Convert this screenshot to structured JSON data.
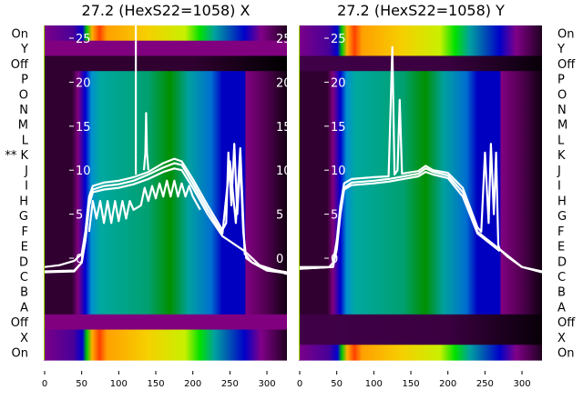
{
  "chart_data": [
    {
      "type": "heatmap",
      "title": "27.2 (HexS22=1058) X",
      "row_labels": [
        "On",
        "Y",
        "Off",
        "P",
        "O",
        "N",
        "M",
        "L",
        "** K",
        "J",
        "I",
        "H",
        "G",
        "F",
        "E",
        "D",
        "C",
        "B",
        "A",
        "Off",
        "X",
        "On"
      ],
      "row_kinds": [
        "on",
        "cal",
        "cal",
        "signal",
        "signal",
        "signal",
        "signal",
        "signal",
        "signal",
        "signal",
        "signal",
        "signal",
        "signal",
        "signal",
        "signal",
        "signal",
        "signal",
        "signal",
        "signal",
        "cal",
        "on",
        "on"
      ],
      "row_kinds_note_top": "top",
      "x_ticks": [
        "0",
        "50",
        "100",
        "150",
        "200",
        "250",
        "300"
      ],
      "x_tick_values": [
        0,
        50,
        100,
        150,
        200,
        250,
        300
      ],
      "xlim": [
        0,
        327
      ],
      "y_ticks": [
        "25",
        "20",
        "15",
        "10",
        "5",
        "0"
      ],
      "y_tick_values": [
        25,
        20,
        15,
        10,
        5,
        0
      ],
      "y_ticks_right": [
        "25",
        "20",
        "15",
        "10",
        "5",
        "0"
      ],
      "ylim": [
        -11.5,
        26.5
      ],
      "traces": [
        {
          "name": "trace-1",
          "x": [
            0,
            20,
            40,
            50,
            55,
            60,
            65,
            80,
            100,
            120,
            140,
            160,
            175,
            185,
            200,
            220,
            240,
            245,
            248,
            252,
            256,
            260,
            264,
            268,
            272,
            280,
            300,
            327
          ],
          "y": [
            -1,
            -0.8,
            -0.3,
            0.5,
            3,
            7,
            8.2,
            8.6,
            8.8,
            9.2,
            9.8,
            10.8,
            11.3,
            11,
            9,
            6,
            3.2,
            4,
            12,
            6,
            13,
            5,
            11,
            3,
            0,
            -0.5,
            -1.2,
            -1.6
          ]
        },
        {
          "name": "trace-2",
          "x": [
            0,
            40,
            50,
            55,
            60,
            65,
            80,
            100,
            120,
            140,
            160,
            175,
            185,
            200,
            220,
            240,
            250,
            258,
            264,
            270,
            280,
            300,
            327
          ],
          "y": [
            -1.5,
            -1.4,
            -0.5,
            2,
            6,
            7.8,
            8.2,
            8.4,
            8.8,
            9.5,
            10.3,
            10.8,
            10.6,
            8.5,
            5.5,
            2.8,
            11,
            4,
            12.5,
            0.5,
            -0.5,
            -1.4,
            -1.7
          ]
        },
        {
          "name": "trace-3",
          "x": [
            0,
            40,
            50,
            55,
            60,
            65,
            80,
            100,
            120,
            140,
            160,
            175,
            185,
            200,
            220,
            240,
            270,
            290,
            327
          ],
          "y": [
            -1.6,
            -1.5,
            -0.5,
            2,
            6,
            7.5,
            7.8,
            8,
            8.4,
            9,
            9.8,
            10.2,
            10,
            8,
            5,
            2.5,
            0.8,
            -0.8,
            -1.8
          ]
        },
        {
          "name": "trace-osc",
          "x": [
            60,
            65,
            70,
            75,
            80,
            85,
            90,
            95,
            100,
            105,
            110,
            115,
            120,
            130,
            135,
            140,
            145,
            150,
            155,
            160,
            165,
            170,
            175,
            180,
            185,
            190,
            195,
            200,
            210
          ],
          "y": [
            3,
            6.5,
            4.5,
            6.5,
            4,
            6.5,
            4,
            6.5,
            4.2,
            6.5,
            4.5,
            6.5,
            5.5,
            6,
            8,
            6.5,
            8.2,
            6.8,
            8.5,
            7,
            8.8,
            7,
            8.8,
            7,
            8.5,
            7,
            8.2,
            7,
            5.5
          ]
        },
        {
          "name": "trace-spike-137",
          "x": [
            134,
            136,
            137,
            138,
            140
          ],
          "y": [
            10,
            12,
            16.5,
            12,
            10
          ]
        },
        {
          "name": "trace-vertical-123",
          "x": [
            123,
            123
          ],
          "y": [
            9.5,
            26.5
          ]
        }
      ]
    },
    {
      "type": "heatmap",
      "title": "27.2 (HexS22=1058) Y",
      "row_labels": [
        "On",
        "Y",
        "Off",
        "P",
        "O",
        "N",
        "M",
        "L",
        "K",
        "J",
        "I",
        "H",
        "G",
        "F",
        "E",
        "D",
        "C",
        "B",
        "A",
        "Off",
        "X",
        "On"
      ],
      "row_kinds": [
        "on",
        "on",
        "off",
        "signal",
        "signal",
        "signal",
        "signal",
        "signal",
        "signal",
        "signal",
        "signal",
        "signal",
        "signal",
        "signal",
        "signal",
        "signal",
        "signal",
        "signal",
        "signal",
        "off",
        "off",
        "on"
      ],
      "x_ticks": [
        "0",
        "50",
        "100",
        "150",
        "200",
        "250",
        "300"
      ],
      "x_tick_values": [
        0,
        50,
        100,
        150,
        200,
        250,
        300
      ],
      "xlim": [
        0,
        327
      ],
      "y_ticks": [
        "25",
        "20",
        "15",
        "10",
        "5",
        "0"
      ],
      "y_tick_values": [
        25,
        20,
        15,
        10,
        5,
        0
      ],
      "ylim": [
        -11.5,
        26.5
      ],
      "traces": [
        {
          "name": "trace-1",
          "x": [
            0,
            20,
            40,
            45,
            50,
            55,
            60,
            70,
            100,
            120,
            125,
            128,
            132,
            135,
            138,
            145,
            160,
            170,
            180,
            200,
            220,
            240,
            245,
            250,
            255,
            258,
            262,
            265,
            268,
            270,
            280,
            300,
            327
          ],
          "y": [
            -1,
            -1,
            -1,
            -0.5,
            2,
            6,
            8.5,
            9,
            9.2,
            9.3,
            24,
            9.5,
            10,
            18,
            9.6,
            9.7,
            9.9,
            10.5,
            10,
            9.7,
            8,
            3.5,
            3,
            12,
            4,
            13,
            5,
            12,
            1.5,
            1,
            0.2,
            -1,
            -1.5
          ]
        },
        {
          "name": "trace-2",
          "x": [
            0,
            45,
            50,
            55,
            60,
            70,
            100,
            120,
            140,
            160,
            170,
            180,
            200,
            220,
            240,
            270,
            300,
            327
          ],
          "y": [
            -1.2,
            -1,
            1.5,
            5.5,
            8,
            8.6,
            8.8,
            9,
            9.3,
            9.6,
            10.2,
            9.8,
            9.4,
            7.5,
            3,
            1,
            -1,
            -1.6
          ]
        },
        {
          "name": "trace-3",
          "x": [
            0,
            45,
            50,
            55,
            60,
            70,
            100,
            120,
            140,
            160,
            170,
            180,
            200,
            220,
            240,
            270
          ],
          "y": [
            -1.2,
            -1,
            1,
            5,
            7.8,
            8.3,
            8.5,
            8.7,
            9,
            9.3,
            9.8,
            9.5,
            9.1,
            7,
            2.8,
            0.8
          ]
        }
      ]
    }
  ]
}
